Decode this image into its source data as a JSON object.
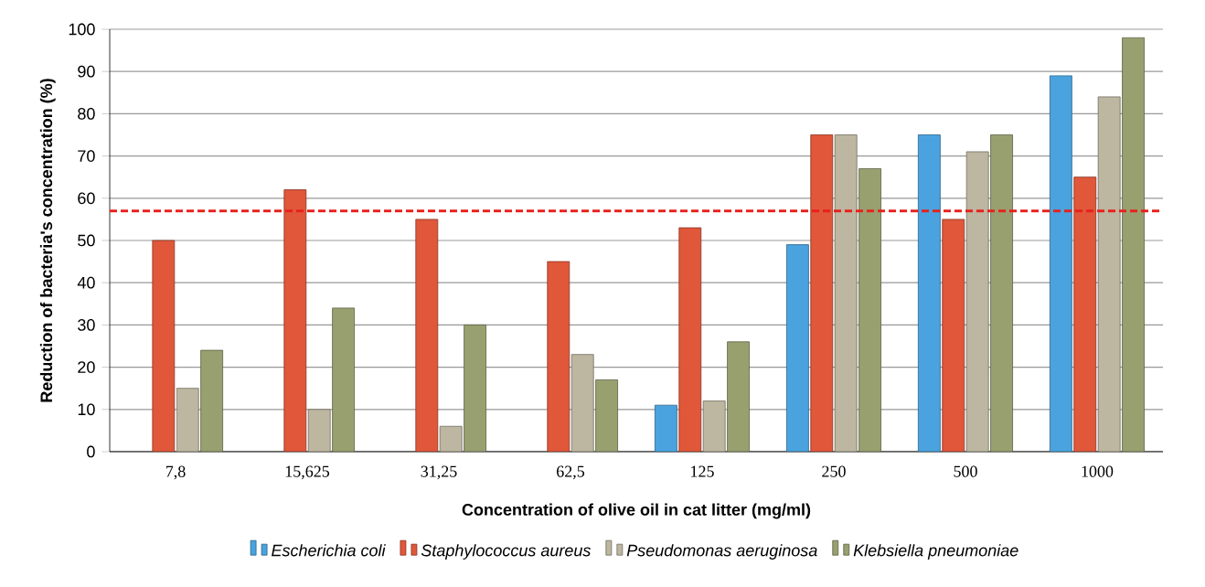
{
  "chart_data": {
    "type": "bar",
    "xlabel": "Concentration of olive oil in cat litter (mg/ml)",
    "ylabel": "Reduction of bacteria's concentration (%)",
    "categories": [
      "7,8",
      "15,625",
      "31,25",
      "62,5",
      "125",
      "250",
      "500",
      "1000"
    ],
    "series": [
      {
        "name": "Escherichia coli",
        "color": "#4aa3df",
        "values": [
          null,
          null,
          null,
          null,
          11,
          49,
          75,
          89
        ]
      },
      {
        "name": "Staphylococcus aureus",
        "color": "#e0573a",
        "values": [
          50,
          62,
          55,
          45,
          53,
          75,
          55,
          65
        ]
      },
      {
        "name": "Pseudomonas aeruginosa",
        "color": "#bdb6a0",
        "values": [
          15,
          10,
          6,
          23,
          12,
          75,
          71,
          84
        ]
      },
      {
        "name": "Klebsiella pneumoniae",
        "color": "#98a070",
        "values": [
          24,
          34,
          30,
          17,
          26,
          67,
          75,
          98
        ]
      }
    ],
    "ylim": [
      0,
      100
    ],
    "yticks": [
      0,
      10,
      20,
      30,
      40,
      50,
      60,
      70,
      80,
      90,
      100
    ],
    "grid": "y",
    "legend": "bottom",
    "ref_lines": [
      {
        "axis": "y",
        "value": 57,
        "color": "#e8201c",
        "line_style": "dashed"
      }
    ]
  }
}
